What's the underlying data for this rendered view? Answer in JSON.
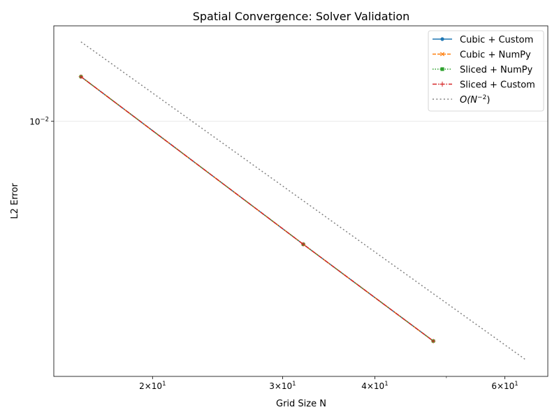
{
  "chart_data": {
    "type": "line",
    "title": "Spatial Convergence: Solver Validation",
    "xlabel": "Grid Size N",
    "ylabel": "L2 Error",
    "xscale": "log",
    "yscale": "log",
    "xlim": [
      14.7,
      68.6
    ],
    "ylim": [
      0.00108,
      0.023
    ],
    "x_ticks": [
      {
        "value": 20,
        "label": "2×10",
        "exp": "1"
      },
      {
        "value": 30,
        "label": "3×10",
        "exp": "1"
      },
      {
        "value": 40,
        "label": "4×10",
        "exp": "1"
      },
      {
        "value": 60,
        "label": "6×10",
        "exp": "1"
      }
    ],
    "y_ticks": [
      {
        "value": 0.01,
        "label": "10",
        "exp": "−2"
      }
    ],
    "grid": "y-major",
    "legend_position": "top-right",
    "series": [
      {
        "name": "Cubic + Custom",
        "color": "#1f77b4",
        "dash": "",
        "marker": "circle",
        "x": [
          16,
          32,
          48
        ],
        "y": [
          0.01476,
          0.00342,
          0.00147
        ]
      },
      {
        "name": "Cubic + NumPy",
        "color": "#ff7f0e",
        "dash": "5,2",
        "marker": "x",
        "x": [
          16,
          32,
          48
        ],
        "y": [
          0.01476,
          0.00342,
          0.00147
        ]
      },
      {
        "name": "Sliced + NumPy",
        "color": "#2ca02c",
        "dash": "1.5,2",
        "marker": "square",
        "x": [
          16,
          32,
          48
        ],
        "y": [
          0.01476,
          0.00342,
          0.00147
        ]
      },
      {
        "name": "Sliced + Custom",
        "color": "#d62728",
        "dash": "6,2,1.5,2",
        "marker": "plus",
        "x": [
          16,
          32,
          48
        ],
        "y": [
          0.01476,
          0.00342,
          0.00147
        ]
      },
      {
        "name": "O(N",
        "name_exp": "−2",
        "name_tail": ")",
        "color": "#808080",
        "dash": "2,3.3",
        "marker": "",
        "x": [
          16,
          64
        ],
        "y": [
          0.02,
          0.00125
        ]
      }
    ]
  }
}
